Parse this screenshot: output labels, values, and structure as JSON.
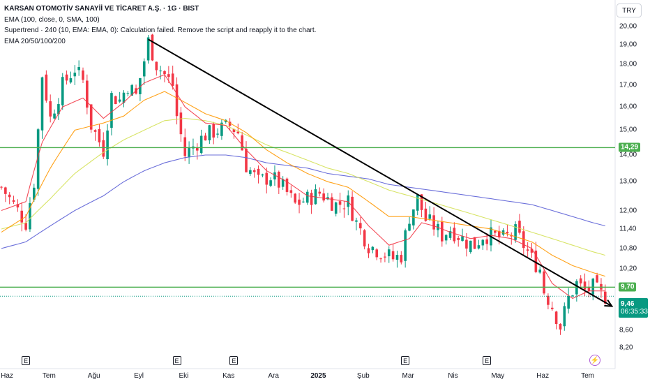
{
  "legend": {
    "title": "KARSAN OTOMOTİV SANAYİİ VE TİCARET A.Ş. · 1G · BIST",
    "ema100": "EMA (100, close, 0, SMA, 100)",
    "supertrend": "Supertrend · 240 (10, EMA: EMA, 0): Calculation failed. Remove the script and reapply it to the chart.",
    "ema_group": "EMA 20/50/100/200"
  },
  "currency": "TRY",
  "colors": {
    "up": "#089981",
    "down": "#f23645",
    "ema20": "#f23645",
    "ema50": "#ff9800",
    "ema100": "#d4e157",
    "ema200": "#5b5fd6",
    "hline": "#4caf50",
    "trend": "#000000"
  },
  "badges": {
    "upper_line": "14,29",
    "lower_line": "9,70",
    "last_price": "9,46",
    "countdown": "06:35:33"
  },
  "earnings_marker": "E",
  "chart_data": {
    "type": "candlestick",
    "title": "KARSAN OTOMOTİV SANAYİİ VE TİCARET A.Ş. · 1G · BIST",
    "y_scale": "log",
    "y_ticks": [
      "20,00",
      "19,00",
      "18,00",
      "17,00",
      "16,00",
      "15,00",
      "14,00",
      "13,00",
      "12,00",
      "11,40",
      "10,80",
      "10,20",
      "9,10",
      "8,60",
      "8,20"
    ],
    "y_tick_values": [
      20.0,
      19.0,
      18.0,
      17.0,
      16.0,
      15.0,
      14.0,
      13.0,
      12.0,
      11.4,
      10.8,
      10.2,
      9.1,
      8.6,
      8.2
    ],
    "x_ticks": [
      "Haz",
      "Tem",
      "Ağu",
      "Eyl",
      "Eki",
      "Kas",
      "Ara",
      "2025",
      "Şub",
      "Mar",
      "Nis",
      "May",
      "Haz",
      "Tem"
    ],
    "x_tick_index": [
      0,
      11,
      22,
      33,
      44,
      55,
      66,
      77,
      88,
      99,
      110,
      121,
      132,
      143
    ],
    "ylim": [
      8.1,
      20.6
    ],
    "n_bars": 152,
    "price_path": [
      [
        0,
        12.8
      ],
      [
        4,
        12.0
      ],
      [
        6,
        11.6
      ],
      [
        8,
        13.0
      ],
      [
        9,
        15.0
      ],
      [
        10,
        17.5
      ],
      [
        12,
        15.5
      ],
      [
        15,
        17.0
      ],
      [
        18,
        17.8
      ],
      [
        20,
        17.2
      ],
      [
        22,
        15.2
      ],
      [
        25,
        14.2
      ],
      [
        27,
        16.5
      ],
      [
        29,
        16.3
      ],
      [
        31,
        17.0
      ],
      [
        33,
        16.5
      ],
      [
        35,
        18.2
      ],
      [
        36,
        19.2
      ],
      [
        38,
        18.0
      ],
      [
        40,
        17.5
      ],
      [
        42,
        17.0
      ],
      [
        43,
        15.6
      ],
      [
        45,
        14.0
      ],
      [
        48,
        14.5
      ],
      [
        50,
        14.8
      ],
      [
        53,
        15.0
      ],
      [
        56,
        15.2
      ],
      [
        58,
        14.9
      ],
      [
        60,
        13.6
      ],
      [
        63,
        13.0
      ],
      [
        66,
        13.2
      ],
      [
        69,
        12.8
      ],
      [
        72,
        12.2
      ],
      [
        75,
        12.4
      ],
      [
        78,
        12.6
      ],
      [
        82,
        12.2
      ],
      [
        85,
        12.3
      ],
      [
        87,
        11.6
      ],
      [
        90,
        10.9
      ],
      [
        93,
        10.7
      ],
      [
        96,
        10.5
      ],
      [
        98,
        10.6
      ],
      [
        100,
        11.8
      ],
      [
        102,
        12.4
      ],
      [
        104,
        11.7
      ],
      [
        106,
        11.5
      ],
      [
        108,
        11.2
      ],
      [
        110,
        11.4
      ],
      [
        112,
        11.2
      ],
      [
        114,
        11.0
      ],
      [
        116,
        10.9
      ],
      [
        118,
        11.2
      ],
      [
        120,
        11.2
      ],
      [
        123,
        11.1
      ],
      [
        126,
        11.3
      ],
      [
        128,
        10.9
      ],
      [
        130,
        10.5
      ],
      [
        132,
        10.2
      ],
      [
        133,
        9.6
      ],
      [
        135,
        9.2
      ],
      [
        137,
        8.7
      ],
      [
        139,
        9.4
      ],
      [
        141,
        9.8
      ],
      [
        143,
        9.6
      ],
      [
        145,
        9.7
      ],
      [
        147,
        9.5
      ],
      [
        148,
        9.46
      ]
    ],
    "ema20_path": [
      [
        0,
        12.0
      ],
      [
        6,
        12.3
      ],
      [
        10,
        14.5
      ],
      [
        15,
        16.0
      ],
      [
        20,
        16.4
      ],
      [
        25,
        15.5
      ],
      [
        30,
        16.2
      ],
      [
        35,
        17.1
      ],
      [
        40,
        17.5
      ],
      [
        45,
        16.0
      ],
      [
        50,
        15.3
      ],
      [
        55,
        15.2
      ],
      [
        60,
        14.2
      ],
      [
        65,
        13.4
      ],
      [
        70,
        13.0
      ],
      [
        75,
        12.5
      ],
      [
        80,
        12.4
      ],
      [
        85,
        12.3
      ],
      [
        90,
        11.5
      ],
      [
        95,
        10.9
      ],
      [
        100,
        11.1
      ],
      [
        103,
        11.6
      ],
      [
        106,
        11.5
      ],
      [
        110,
        11.3
      ],
      [
        115,
        11.1
      ],
      [
        120,
        11.2
      ],
      [
        125,
        11.1
      ],
      [
        130,
        10.8
      ],
      [
        135,
        9.8
      ],
      [
        140,
        9.4
      ],
      [
        144,
        9.6
      ],
      [
        148,
        9.6
      ]
    ],
    "ema50_path": [
      [
        0,
        11.3
      ],
      [
        6,
        11.8
      ],
      [
        12,
        13.5
      ],
      [
        18,
        15.0
      ],
      [
        25,
        15.3
      ],
      [
        30,
        15.6
      ],
      [
        35,
        16.3
      ],
      [
        40,
        16.7
      ],
      [
        45,
        16.2
      ],
      [
        50,
        15.7
      ],
      [
        55,
        15.4
      ],
      [
        60,
        14.9
      ],
      [
        65,
        14.2
      ],
      [
        70,
        13.7
      ],
      [
        75,
        13.3
      ],
      [
        80,
        13.0
      ],
      [
        85,
        12.8
      ],
      [
        90,
        12.3
      ],
      [
        95,
        11.8
      ],
      [
        100,
        11.8
      ],
      [
        105,
        11.7
      ],
      [
        110,
        11.6
      ],
      [
        115,
        11.5
      ],
      [
        120,
        11.4
      ],
      [
        125,
        11.2
      ],
      [
        130,
        11.0
      ],
      [
        135,
        10.6
      ],
      [
        140,
        10.3
      ],
      [
        145,
        10.1
      ],
      [
        148,
        10.0
      ]
    ],
    "ema100_path": [
      [
        0,
        11.4
      ],
      [
        6,
        11.6
      ],
      [
        12,
        12.4
      ],
      [
        18,
        13.3
      ],
      [
        25,
        14.1
      ],
      [
        30,
        14.6
      ],
      [
        35,
        15.0
      ],
      [
        40,
        15.4
      ],
      [
        45,
        15.5
      ],
      [
        50,
        15.4
      ],
      [
        55,
        15.2
      ],
      [
        60,
        14.8
      ],
      [
        65,
        14.4
      ],
      [
        70,
        14.1
      ],
      [
        75,
        13.8
      ],
      [
        80,
        13.5
      ],
      [
        85,
        13.3
      ],
      [
        90,
        13.0
      ],
      [
        95,
        12.7
      ],
      [
        100,
        12.5
      ],
      [
        105,
        12.3
      ],
      [
        110,
        12.1
      ],
      [
        115,
        11.9
      ],
      [
        120,
        11.7
      ],
      [
        125,
        11.5
      ],
      [
        130,
        11.3
      ],
      [
        135,
        11.1
      ],
      [
        140,
        10.9
      ],
      [
        145,
        10.7
      ],
      [
        148,
        10.6
      ]
    ],
    "ema200_path": [
      [
        0,
        10.8
      ],
      [
        6,
        11.0
      ],
      [
        12,
        11.5
      ],
      [
        18,
        12.0
      ],
      [
        25,
        12.5
      ],
      [
        30,
        13.0
      ],
      [
        35,
        13.4
      ],
      [
        40,
        13.7
      ],
      [
        45,
        13.9
      ],
      [
        50,
        14.0
      ],
      [
        55,
        14.0
      ],
      [
        60,
        13.9
      ],
      [
        65,
        13.7
      ],
      [
        70,
        13.6
      ],
      [
        75,
        13.5
      ],
      [
        80,
        13.3
      ],
      [
        85,
        13.2
      ],
      [
        90,
        13.1
      ],
      [
        95,
        12.9
      ],
      [
        100,
        12.8
      ],
      [
        105,
        12.7
      ],
      [
        110,
        12.6
      ],
      [
        115,
        12.5
      ],
      [
        120,
        12.4
      ],
      [
        125,
        12.3
      ],
      [
        130,
        12.2
      ],
      [
        135,
        12.0
      ],
      [
        140,
        11.8
      ],
      [
        145,
        11.6
      ],
      [
        148,
        11.5
      ]
    ],
    "horizontal_lines": [
      14.29,
      9.7
    ],
    "last_price": 9.46,
    "trendline": [
      [
        36,
        19.3
      ],
      [
        151,
        9.2
      ]
    ],
    "earnings_at": [
      6,
      43,
      57,
      99,
      119
    ]
  }
}
